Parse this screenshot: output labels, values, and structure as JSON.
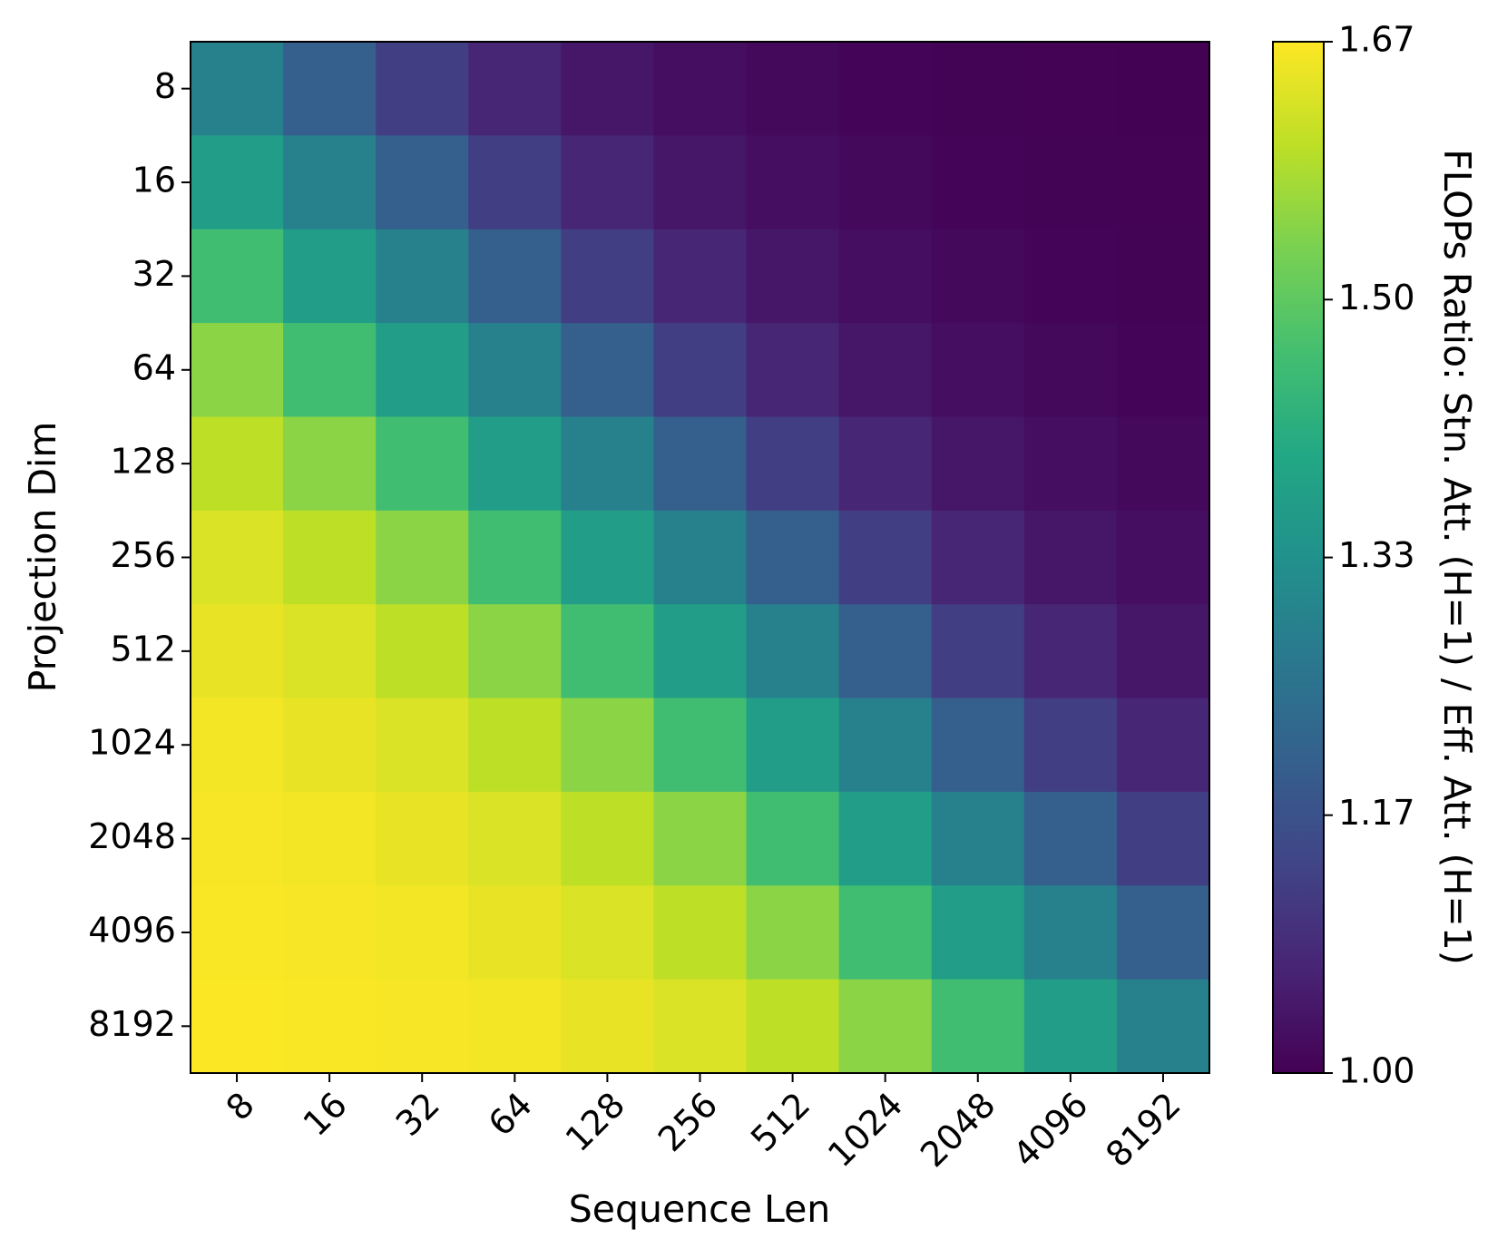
{
  "chart_data": {
    "type": "heatmap",
    "xlabel": "Sequence Len",
    "ylabel": "Projection Dim",
    "colorbar_label": "FLOPs Ratio: Stn. Att. (H=1) / Eff. Att. (H=1)",
    "x_categories": [
      "8",
      "16",
      "32",
      "64",
      "128",
      "256",
      "512",
      "1024",
      "2048",
      "4096",
      "8192"
    ],
    "y_categories": [
      "8",
      "16",
      "32",
      "64",
      "128",
      "256",
      "512",
      "1024",
      "2048",
      "4096",
      "8192"
    ],
    "values": [
      [
        1.29,
        1.2,
        1.12,
        1.07,
        1.04,
        1.025,
        1.015,
        1.008,
        1.005,
        1.003,
        1.002
      ],
      [
        1.37,
        1.29,
        1.2,
        1.12,
        1.07,
        1.04,
        1.025,
        1.015,
        1.008,
        1.005,
        1.003
      ],
      [
        1.46,
        1.37,
        1.29,
        1.2,
        1.12,
        1.07,
        1.04,
        1.025,
        1.015,
        1.008,
        1.005
      ],
      [
        1.55,
        1.46,
        1.37,
        1.29,
        1.2,
        1.12,
        1.07,
        1.04,
        1.025,
        1.015,
        1.008
      ],
      [
        1.6,
        1.55,
        1.46,
        1.37,
        1.29,
        1.2,
        1.12,
        1.07,
        1.04,
        1.025,
        1.015
      ],
      [
        1.63,
        1.6,
        1.55,
        1.46,
        1.37,
        1.29,
        1.2,
        1.12,
        1.07,
        1.04,
        1.025
      ],
      [
        1.645,
        1.63,
        1.6,
        1.55,
        1.46,
        1.37,
        1.29,
        1.2,
        1.12,
        1.07,
        1.04
      ],
      [
        1.655,
        1.645,
        1.63,
        1.6,
        1.55,
        1.46,
        1.37,
        1.29,
        1.2,
        1.12,
        1.07
      ],
      [
        1.66,
        1.655,
        1.645,
        1.63,
        1.6,
        1.55,
        1.46,
        1.37,
        1.29,
        1.2,
        1.12
      ],
      [
        1.663,
        1.66,
        1.655,
        1.645,
        1.63,
        1.6,
        1.55,
        1.46,
        1.37,
        1.29,
        1.2
      ],
      [
        1.666,
        1.663,
        1.66,
        1.655,
        1.645,
        1.63,
        1.6,
        1.55,
        1.46,
        1.37,
        1.29
      ]
    ],
    "colormap": "viridis",
    "clim": [
      1,
      1.6667
    ],
    "cticks": [
      {
        "value": 1,
        "label": "1.00"
      },
      {
        "value": 1.1667,
        "label": "1.17"
      },
      {
        "value": 1.3333,
        "label": "1.33"
      },
      {
        "value": 1.5,
        "label": "1.50"
      },
      {
        "value": 1.6667,
        "label": "1.67"
      }
    ]
  }
}
